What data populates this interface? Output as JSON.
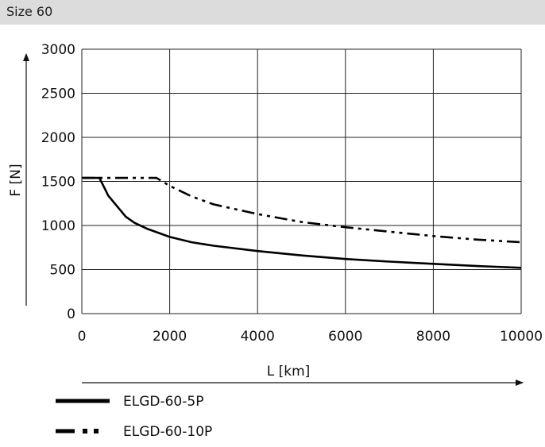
{
  "header": {
    "title": "Size 60"
  },
  "chart_data": {
    "type": "line",
    "title": "Size 60",
    "xlabel": "L [km]",
    "ylabel": "F [N]",
    "xlim": [
      0,
      10000
    ],
    "ylim": [
      0,
      3000
    ],
    "xticks": [
      0,
      2000,
      4000,
      6000,
      8000,
      10000
    ],
    "yticks": [
      0,
      500,
      1000,
      1500,
      2000,
      2500,
      3000
    ],
    "grid": true,
    "legend_position": "bottom-left",
    "series": [
      {
        "name": "ELGD-60-5P",
        "style": "solid",
        "color": "#000000",
        "points": [
          [
            0,
            1540
          ],
          [
            400,
            1540
          ],
          [
            500,
            1440
          ],
          [
            600,
            1340
          ],
          [
            800,
            1220
          ],
          [
            1000,
            1100
          ],
          [
            1200,
            1030
          ],
          [
            1500,
            960
          ],
          [
            2000,
            870
          ],
          [
            2500,
            810
          ],
          [
            3000,
            770
          ],
          [
            4000,
            710
          ],
          [
            5000,
            660
          ],
          [
            6000,
            620
          ],
          [
            7000,
            590
          ],
          [
            8000,
            565
          ],
          [
            9000,
            540
          ],
          [
            10000,
            520
          ]
        ]
      },
      {
        "name": "ELGD-60-10P",
        "style": "dash-dot-dot",
        "color": "#000000",
        "points": [
          [
            0,
            1540
          ],
          [
            1700,
            1540
          ],
          [
            2000,
            1450
          ],
          [
            2500,
            1330
          ],
          [
            3000,
            1240
          ],
          [
            4000,
            1130
          ],
          [
            5000,
            1040
          ],
          [
            6000,
            980
          ],
          [
            7000,
            930
          ],
          [
            8000,
            880
          ],
          [
            9000,
            840
          ],
          [
            10000,
            810
          ]
        ]
      }
    ]
  }
}
